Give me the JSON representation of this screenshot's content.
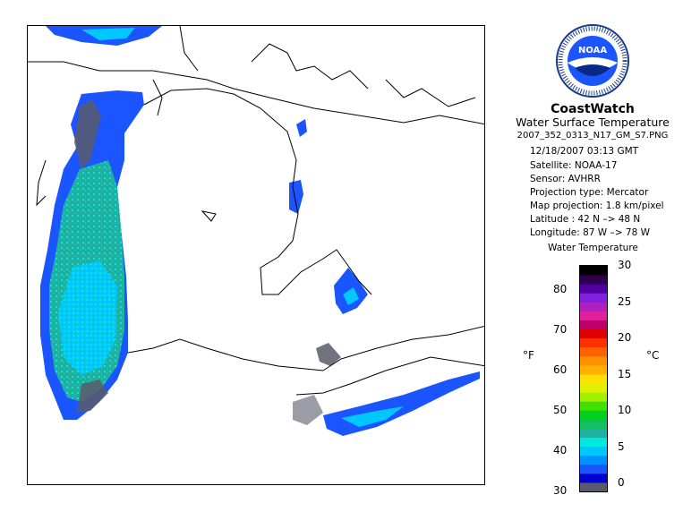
{
  "header": {
    "brand": "CoastWatch",
    "product": "Water Surface Temperature",
    "filename": "2007_352_0313_N17_GM_S7.PNG"
  },
  "metadata": {
    "datetime": "12/18/2007    03:13 GMT",
    "satellite": "Satellite: NOAA-17",
    "sensor": "Sensor: AVHRR",
    "projection_type": "Projection type:  Mercator",
    "map_projection": "Map projection: 1.8 km/pixel",
    "latitude": "Latitude : 42 N –> 48 N",
    "longitude": "Longitude: 87 W –> 78 W"
  },
  "logo": {
    "text": "NOAA",
    "icon": "noaa-seal-icon"
  },
  "legend": {
    "title": "Water Temperature",
    "unit_f": "°F",
    "unit_c": "°C",
    "ticks_f": [
      "30",
      "40",
      "50",
      "60",
      "70",
      "80"
    ],
    "ticks_c": [
      "0",
      "5",
      "10",
      "15",
      "20",
      "25",
      "30"
    ],
    "colors": [
      "#5a5a6a",
      "#0000cc",
      "#1a55ff",
      "#0090ff",
      "#00c8ff",
      "#00e8e0",
      "#20b0a0",
      "#10c060",
      "#00d020",
      "#40e000",
      "#a0f000",
      "#e0f000",
      "#ffe000",
      "#ffb000",
      "#ff9000",
      "#ff6000",
      "#ff3000",
      "#e00000",
      "#c0006a",
      "#e0209a",
      "#b020c0",
      "#8020e0",
      "#5000a0",
      "#300050",
      "#000000"
    ]
  },
  "colors": {
    "land_outline": "#000000",
    "water_cold": "#1a55ff",
    "water_mid": "#00c8ff",
    "water_teal": "#20b0a0",
    "cloud_gray": "#5a5a6a"
  }
}
